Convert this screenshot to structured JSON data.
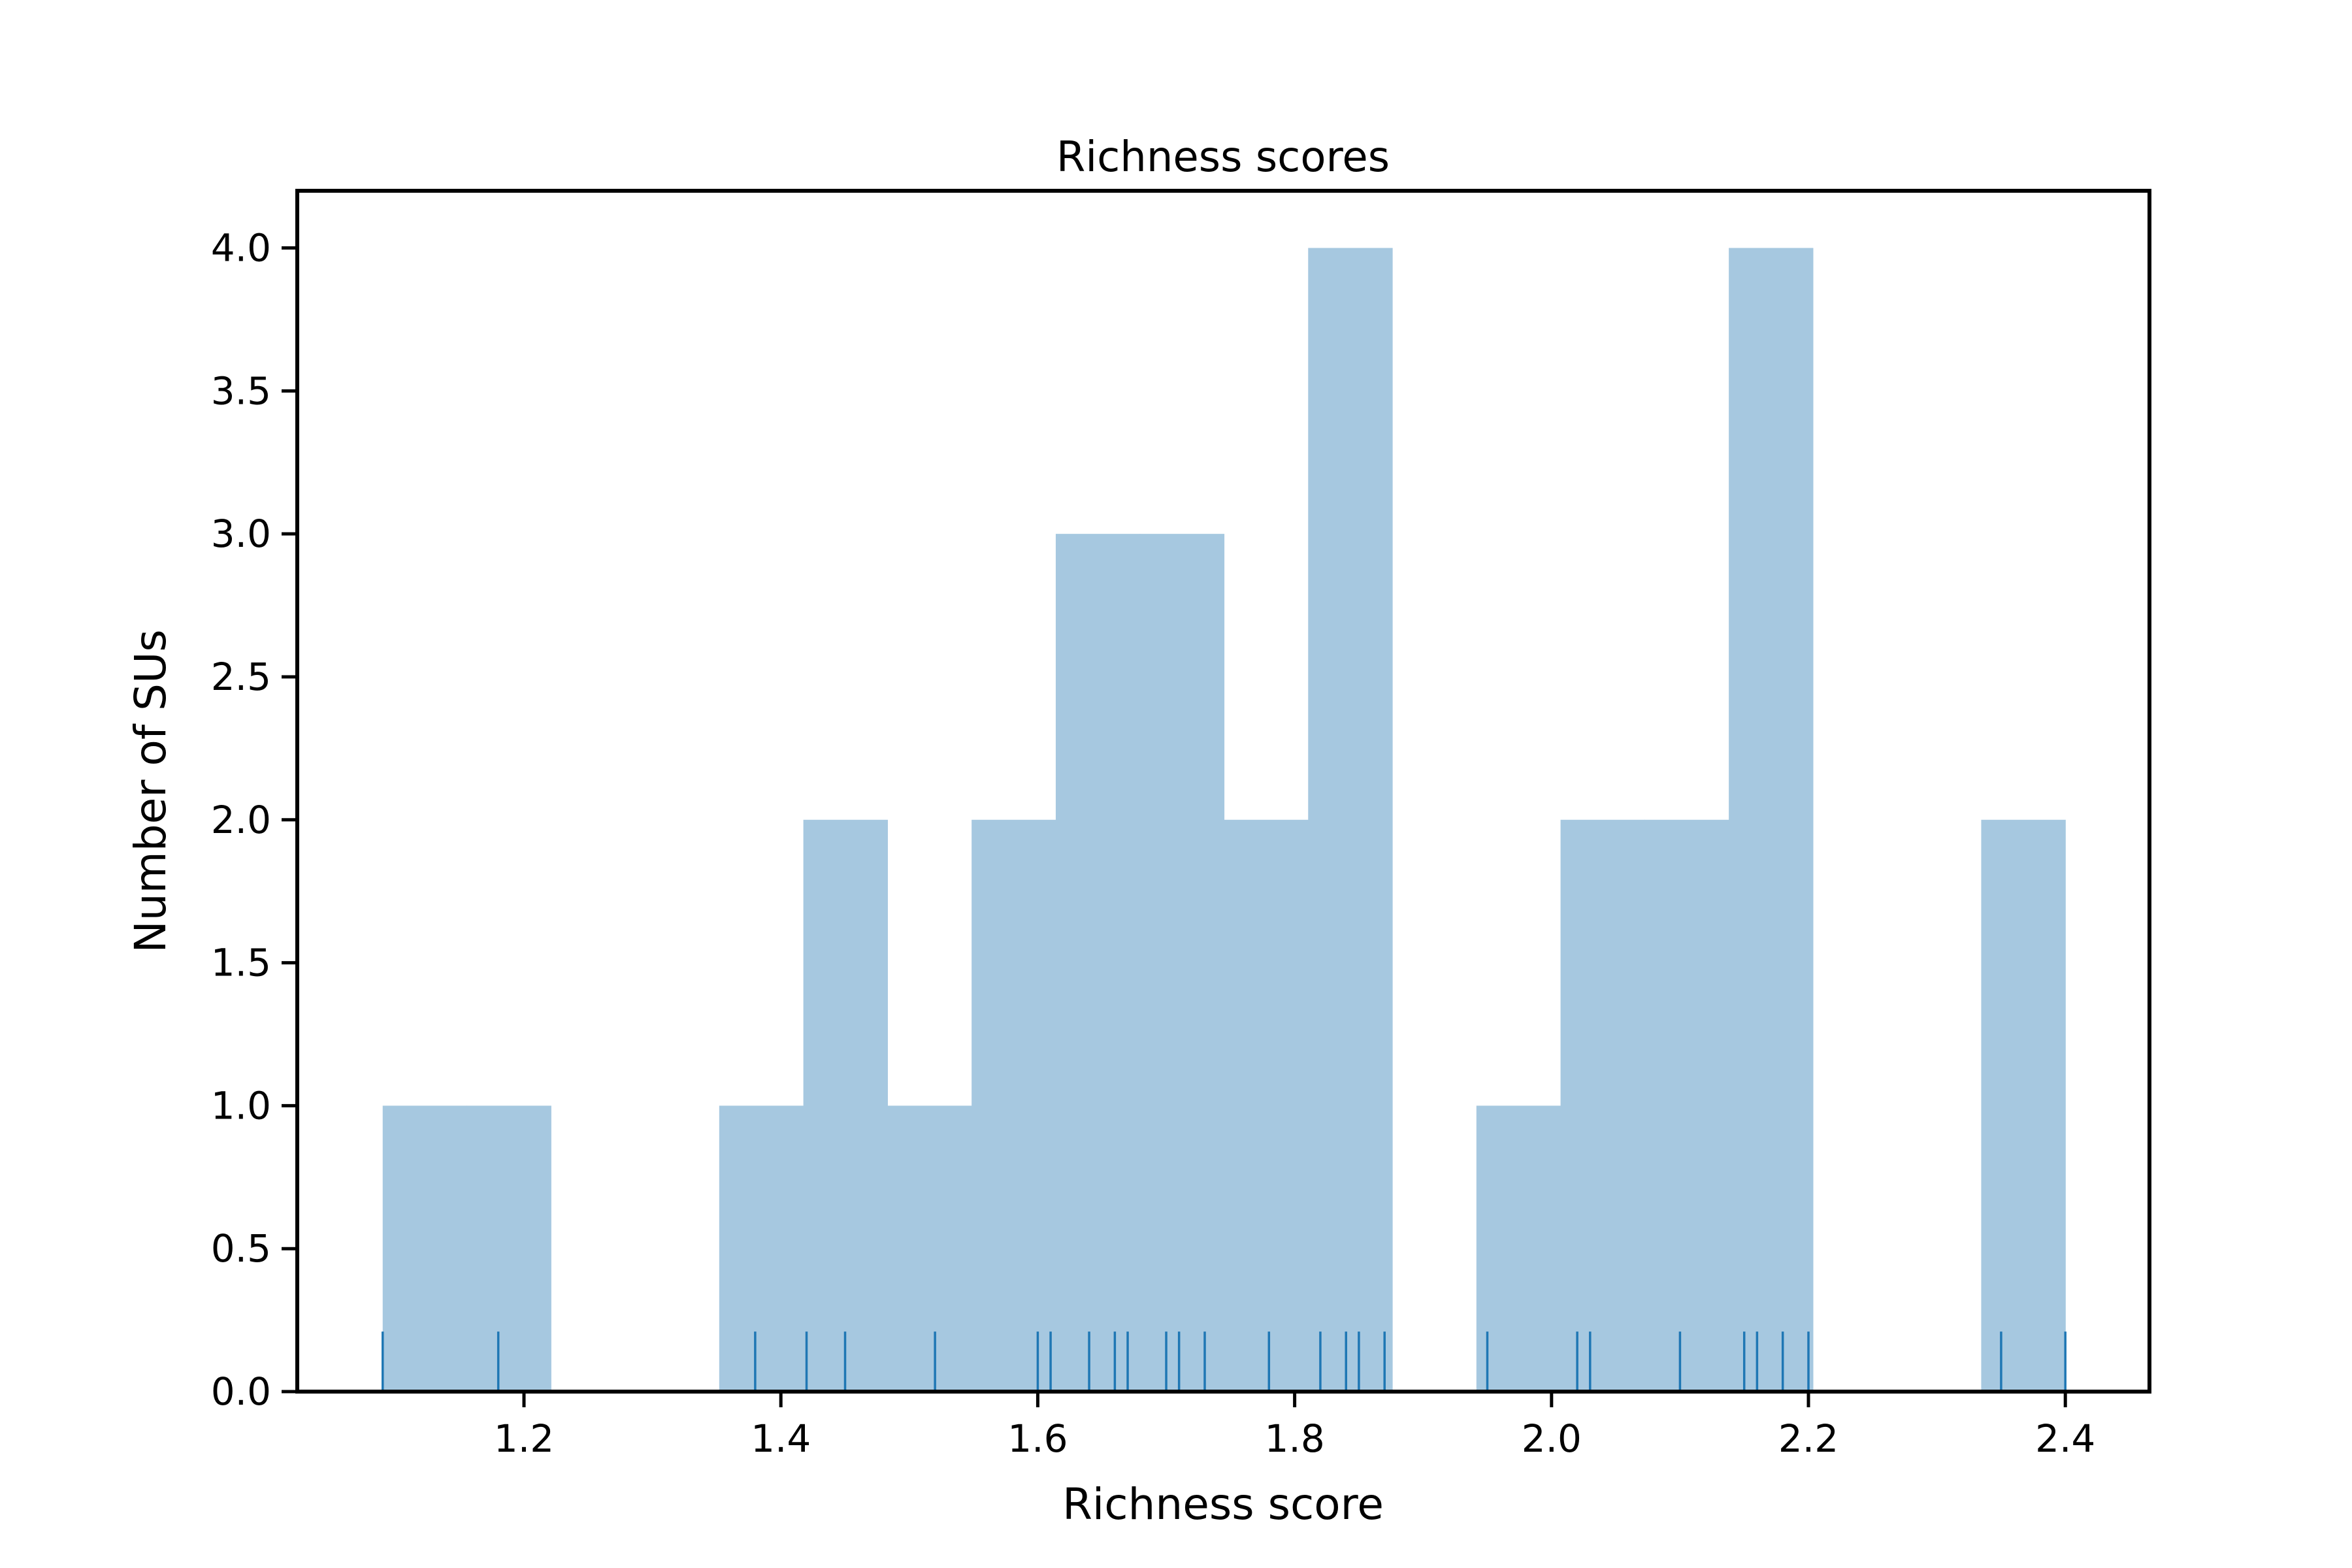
{
  "chart_data": {
    "type": "histogram",
    "title": "Richness scores",
    "xlabel": "Richness score",
    "ylabel": "Number of SUs",
    "xlim": [
      1.0235,
      2.4655
    ],
    "ylim": [
      0.0,
      4.2
    ],
    "x_ticks": [
      "1.2",
      "1.4",
      "1.6",
      "1.8",
      "2.0",
      "2.2",
      "2.4"
    ],
    "x_tick_values": [
      1.2,
      1.4,
      1.6,
      1.8,
      2.0,
      2.2,
      2.4
    ],
    "y_ticks": [
      "0.0",
      "0.5",
      "1.0",
      "1.5",
      "2.0",
      "2.5",
      "3.0",
      "3.5",
      "4.0"
    ],
    "y_tick_values": [
      0.0,
      0.5,
      1.0,
      1.5,
      2.0,
      2.5,
      3.0,
      3.5,
      4.0
    ],
    "bin_edges": [
      1.09,
      1.1555,
      1.221,
      1.2865,
      1.352,
      1.4175,
      1.483,
      1.5485,
      1.614,
      1.6795,
      1.745,
      1.8105,
      1.876,
      1.9415,
      2.007,
      2.0725,
      2.138,
      2.2035,
      2.269,
      2.3345,
      2.4
    ],
    "counts": [
      1,
      1,
      0,
      0,
      1,
      2,
      1,
      2,
      3,
      3,
      2,
      4,
      0,
      1,
      2,
      2,
      4,
      0,
      0,
      2
    ],
    "rug_values": [
      1.09,
      1.18,
      1.38,
      1.42,
      1.45,
      1.52,
      1.6,
      1.61,
      1.64,
      1.66,
      1.67,
      1.7,
      1.71,
      1.73,
      1.78,
      1.82,
      1.84,
      1.85,
      1.87,
      1.95,
      2.02,
      2.03,
      2.1,
      2.15,
      2.16,
      2.18,
      2.2,
      2.35,
      2.4
    ],
    "bar_color": "#a6c8e0",
    "rug_color": "#1f77b4",
    "grid": false,
    "legend": "none"
  }
}
